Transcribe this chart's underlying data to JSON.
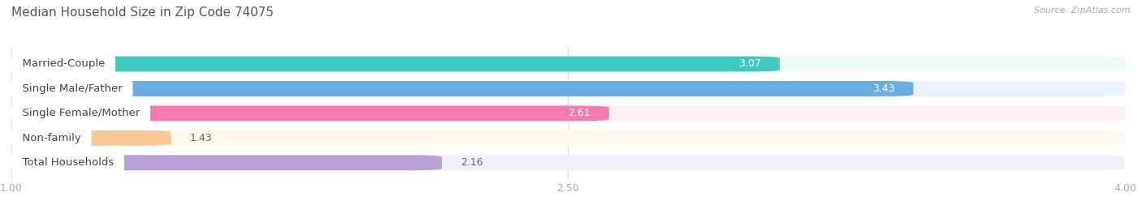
{
  "title": "Median Household Size in Zip Code 74075",
  "source": "Source: ZipAtlas.com",
  "categories": [
    "Married-Couple",
    "Single Male/Father",
    "Single Female/Mother",
    "Non-family",
    "Total Households"
  ],
  "values": [
    3.07,
    3.43,
    2.61,
    1.43,
    2.16
  ],
  "bar_colors": [
    "#3ec8c0",
    "#6aaee0",
    "#f57aaf",
    "#f7c896",
    "#b89fd8"
  ],
  "bar_bg_colors": [
    "#eef9f8",
    "#eaf2fb",
    "#fdeef6",
    "#fef8ee",
    "#f3eefb"
  ],
  "xlim": [
    1.0,
    4.0
  ],
  "xticks": [
    1.0,
    2.5,
    4.0
  ],
  "bar_height": 0.62,
  "background_color": "#ffffff",
  "title_fontsize": 11,
  "label_fontsize": 9.5,
  "value_fontsize": 9
}
